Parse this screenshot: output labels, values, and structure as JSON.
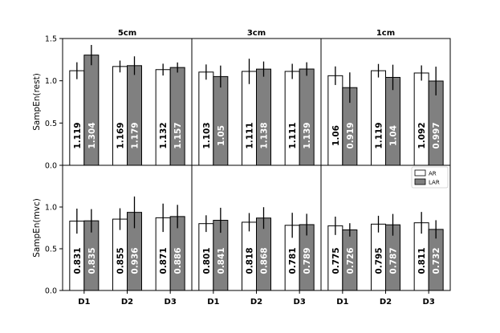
{
  "chart_data": {
    "type": "bar",
    "panel_titles": [
      "5cm",
      "3cm",
      "1cm"
    ],
    "groups": [
      "D1",
      "D2",
      "D3"
    ],
    "legend": [
      {
        "name": "AR",
        "color": "#ffffff"
      },
      {
        "name": "LAR",
        "color": "#808080"
      }
    ],
    "legend_position": "upper-right of bottom-right panel",
    "rows": [
      {
        "ylabel": "SampEn(rest)",
        "ylim": [
          0,
          1.5
        ],
        "yticks": [
          0.0,
          0.5,
          1.0,
          1.5
        ],
        "ytick_labels": [
          "0.0",
          "0.5",
          "1.0",
          "1.5"
        ],
        "panels": [
          {
            "AR": [
              1.119,
              1.169,
              1.132
            ],
            "LAR": [
              1.304,
              1.179,
              1.157
            ],
            "AR_labels": [
              "1.119",
              "1.169",
              "1.132"
            ],
            "LAR_labels": [
              "1.304",
              "1.179",
              "1.157"
            ],
            "AR_err": [
              0.1,
              0.07,
              0.07
            ],
            "LAR_err": [
              0.12,
              0.11,
              0.06
            ]
          },
          {
            "AR": [
              1.103,
              1.111,
              1.111
            ],
            "LAR": [
              1.05,
              1.138,
              1.139
            ],
            "AR_labels": [
              "1.103",
              "1.111",
              "1.111"
            ],
            "LAR_labels": [
              "1.05",
              "1.138",
              "1.139"
            ],
            "AR_err": [
              0.09,
              0.15,
              0.09
            ],
            "LAR_err": [
              0.13,
              0.09,
              0.08
            ]
          },
          {
            "AR": [
              1.06,
              1.119,
              1.092
            ],
            "LAR": [
              0.919,
              1.04,
              0.997
            ],
            "AR_labels": [
              "1.06",
              "1.119",
              "1.092"
            ],
            "LAR_labels": [
              "0.919",
              "1.04",
              "0.997"
            ],
            "AR_err": [
              0.11,
              0.08,
              0.09
            ],
            "LAR_err": [
              0.18,
              0.15,
              0.17
            ]
          }
        ]
      },
      {
        "ylabel": "SampEn(mvc)",
        "ylim": [
          0,
          1.5
        ],
        "yticks": [
          0.0,
          0.5,
          1.0
        ],
        "ytick_labels": [
          "0.0",
          "0.5",
          "1.0"
        ],
        "panels": [
          {
            "AR": [
              0.831,
              0.855,
              0.871
            ],
            "LAR": [
              0.835,
              0.936,
              0.886
            ],
            "AR_labels": [
              "0.831",
              "0.855",
              "0.871"
            ],
            "LAR_labels": [
              "0.835",
              "0.936",
              "0.886"
            ],
            "AR_err": [
              0.15,
              0.13,
              0.17
            ],
            "LAR_err": [
              0.14,
              0.19,
              0.14
            ]
          },
          {
            "AR": [
              0.801,
              0.818,
              0.781
            ],
            "LAR": [
              0.841,
              0.868,
              0.789
            ],
            "AR_labels": [
              "0.801",
              "0.818",
              "0.781"
            ],
            "LAR_labels": [
              "0.841",
              "0.868",
              "0.789"
            ],
            "AR_err": [
              0.1,
              0.11,
              0.15
            ],
            "LAR_err": [
              0.15,
              0.13,
              0.13
            ]
          },
          {
            "AR": [
              0.775,
              0.795,
              0.811
            ],
            "LAR": [
              0.726,
              0.787,
              0.732
            ],
            "AR_labels": [
              "0.775",
              "0.795",
              "0.811"
            ],
            "LAR_labels": [
              "0.726",
              "0.787",
              "0.732"
            ],
            "AR_err": [
              0.11,
              0.1,
              0.13
            ],
            "LAR_err": [
              0.08,
              0.13,
              0.11
            ]
          }
        ]
      }
    ]
  }
}
